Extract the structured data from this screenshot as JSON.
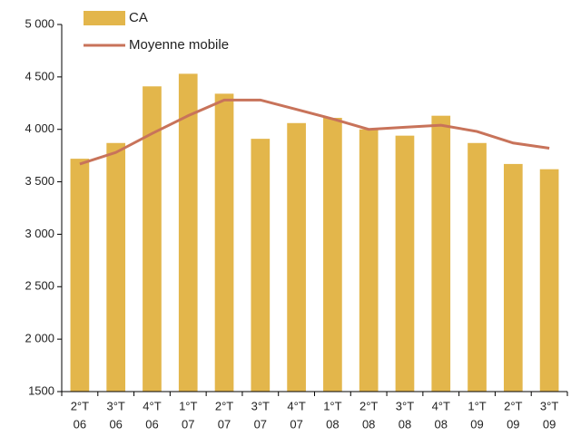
{
  "chart_data": {
    "type": "bar",
    "categories": [
      [
        "2°T",
        "06"
      ],
      [
        "3°T",
        "06"
      ],
      [
        "4°T",
        "06"
      ],
      [
        "1°T",
        "07"
      ],
      [
        "2°T",
        "07"
      ],
      [
        "3°T",
        "07"
      ],
      [
        "4°T",
        "07"
      ],
      [
        "1°T",
        "08"
      ],
      [
        "2°T",
        "08"
      ],
      [
        "3°T",
        "08"
      ],
      [
        "4°T",
        "08"
      ],
      [
        "1°T",
        "09"
      ],
      [
        "2°T",
        "09"
      ],
      [
        "3°T",
        "09"
      ]
    ],
    "series": [
      {
        "name": "CA",
        "type": "bar",
        "color": "#e3b64b",
        "values": [
          3720,
          3870,
          4410,
          4530,
          4340,
          3910,
          4060,
          4110,
          4000,
          3940,
          4130,
          3870,
          3670,
          3620
        ]
      },
      {
        "name": "Moyenne mobile",
        "type": "line",
        "color": "#c8735a",
        "values": [
          3670,
          3780,
          3960,
          4130,
          4280,
          4280,
          4190,
          4100,
          4000,
          4020,
          4040,
          3980,
          3870,
          3820
        ]
      }
    ],
    "ylim": [
      1500,
      5000
    ],
    "yticks": [
      1500,
      {
        "value": 2000,
        "label": "2 000"
      },
      {
        "value": 2500,
        "label": "2 500"
      },
      {
        "value": 3000,
        "label": "3 000"
      },
      {
        "value": 3500,
        "label": "3 500"
      },
      {
        "value": 4000,
        "label": "4 000"
      },
      {
        "value": 4500,
        "label": "4 500"
      },
      {
        "value": 5000,
        "label": "5 000"
      }
    ],
    "grid": false,
    "legend": "top-left"
  }
}
